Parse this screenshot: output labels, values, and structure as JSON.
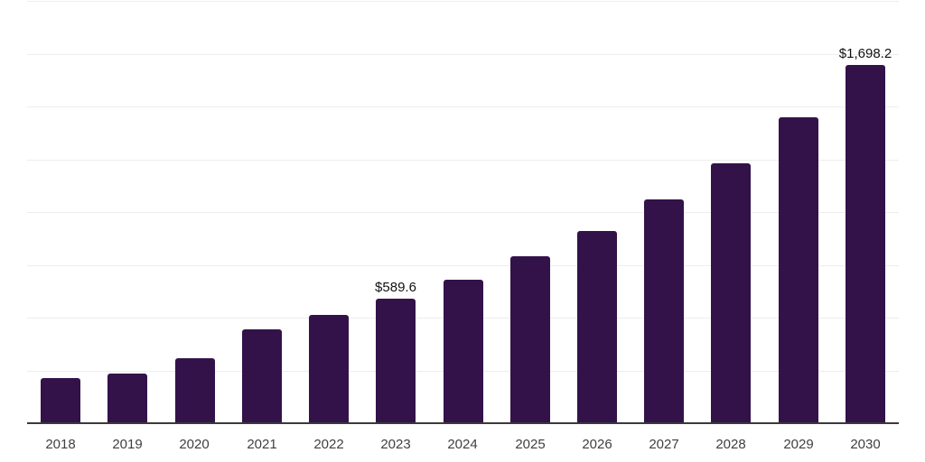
{
  "chart_data": {
    "type": "bar",
    "categories": [
      "2018",
      "2019",
      "2020",
      "2021",
      "2022",
      "2023",
      "2024",
      "2025",
      "2026",
      "2027",
      "2028",
      "2029",
      "2030"
    ],
    "values": [
      213,
      234,
      308,
      443,
      512,
      589.6,
      679,
      789,
      910,
      1059,
      1230,
      1450,
      1698.2
    ],
    "data_labels": [
      "",
      "",
      "",
      "",
      "",
      "$589.6",
      "",
      "",
      "",
      "",
      "",
      "",
      "$1,698.2"
    ],
    "title": "",
    "xlabel": "",
    "ylabel": "",
    "ylim": [
      0,
      2000
    ],
    "gridline_step": 250,
    "grid": "horizontal-only",
    "legend": "none",
    "y_tick_labels_visible": false,
    "colors": {
      "bar": "#33124A",
      "axis": "#3a3a3a",
      "gridline": "#ededed",
      "tick_label": "#404040",
      "data_label": "#111111",
      "background": "#ffffff"
    }
  }
}
